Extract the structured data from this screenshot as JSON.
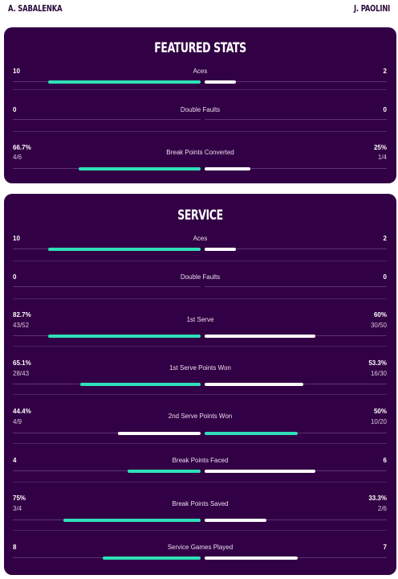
{
  "players": {
    "left": "A. SABALENKA",
    "right": "J. PAOLINI"
  },
  "colors": {
    "card_bg": "#320044",
    "left_bar": "#2ee0b8",
    "right_bar": "#ffffff",
    "track": "#5a3570"
  },
  "featured": {
    "title": "FEATURED STATS",
    "stats": [
      {
        "label": "Aces",
        "left": "10",
        "left_sub": "",
        "right": "2",
        "right_sub": "",
        "left_pct": 0.81,
        "right_pct": 0.17
      },
      {
        "label": "Double Faults",
        "left": "0",
        "left_sub": "",
        "right": "0",
        "right_sub": "",
        "left_pct": 0,
        "right_pct": 0
      },
      {
        "label": "Break Points Converted",
        "left": "66.7%",
        "left_sub": "4/6",
        "right": "25%",
        "right_sub": "1/4",
        "left_pct": 0.65,
        "right_pct": 0.25
      }
    ]
  },
  "service": {
    "title": "SERVICE",
    "stats": [
      {
        "label": "Aces",
        "left": "10",
        "left_sub": "",
        "right": "2",
        "right_sub": "",
        "left_pct": 0.81,
        "right_pct": 0.17
      },
      {
        "label": "Double Faults",
        "left": "0",
        "left_sub": "",
        "right": "0",
        "right_sub": "",
        "left_pct": 0,
        "right_pct": 0
      },
      {
        "label": "1st Serve",
        "left": "82.7%",
        "left_sub": "43/52",
        "right": "60%",
        "right_sub": "30/50",
        "left_pct": 0.81,
        "right_pct": 0.61
      },
      {
        "label": "1st Serve Points Won",
        "left": "65.1%",
        "left_sub": "28/43",
        "right": "53.3%",
        "right_sub": "16/30",
        "left_pct": 0.64,
        "right_pct": 0.54
      },
      {
        "label": "2nd Serve Points Won",
        "left": "44.4%",
        "left_sub": "4/9",
        "right": "50%",
        "right_sub": "10/20",
        "left_pct": 0.44,
        "right_pct": 0.51
      },
      {
        "label": "Break Points Faced",
        "left": "4",
        "left_sub": "",
        "right": "6",
        "right_sub": "",
        "left_pct": 0.39,
        "right_pct": 0.61
      },
      {
        "label": "Break Points Saved",
        "left": "75%",
        "left_sub": "3/4",
        "right": "33.3%",
        "right_sub": "2/6",
        "left_pct": 0.73,
        "right_pct": 0.34
      },
      {
        "label": "Service Games Played",
        "left": "8",
        "left_sub": "",
        "right": "7",
        "right_sub": "",
        "left_pct": 0.52,
        "right_pct": 0.51
      }
    ]
  }
}
